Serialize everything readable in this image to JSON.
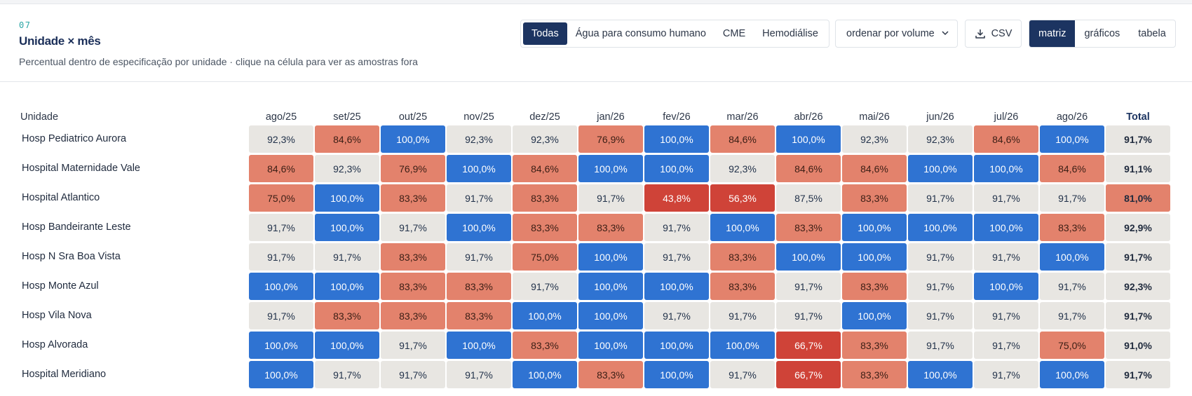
{
  "header": {
    "section_number": "07",
    "title": "Unidade × mês",
    "subtitle": "Percentual dentro de especificação por unidade · clique na célula para ver as amostras fora"
  },
  "filters": {
    "options": [
      "Todas",
      "Água para consumo humano",
      "CME",
      "Hemodiálise"
    ],
    "selected": "Todas"
  },
  "sort_select": {
    "value": "ordenar por volume",
    "icon": "chevron-down-icon"
  },
  "csv_button": {
    "label": "CSV",
    "icon": "download-icon"
  },
  "view_toggle": {
    "options": [
      "matriz",
      "gráficos",
      "tabela"
    ],
    "selected": "matriz"
  },
  "matrix": {
    "unit_header": "Unidade",
    "months": [
      "ago/25",
      "set/25",
      "out/25",
      "nov/25",
      "dez/25",
      "jan/26",
      "fev/26",
      "mar/26",
      "abr/26",
      "mai/26",
      "jun/26",
      "jul/26",
      "ago/26"
    ],
    "total_header": "Total",
    "colors": {
      "neutral": "#e8e6e2",
      "good": "#2f73d2",
      "warn": "#e3826c",
      "bad": "#cf4338",
      "accent": "#1c3461"
    },
    "rows": [
      {
        "unit": "Hosp Pediatrico Aurora",
        "values": [
          "92,3%",
          "84,6%",
          "100,0%",
          "92,3%",
          "92,3%",
          "76,9%",
          "100,0%",
          "84,6%",
          "100,0%",
          "92,3%",
          "92,3%",
          "84,6%",
          "100,0%"
        ],
        "total": "91,7%"
      },
      {
        "unit": "Hospital Maternidade Vale",
        "values": [
          "84,6%",
          "92,3%",
          "76,9%",
          "100,0%",
          "84,6%",
          "100,0%",
          "100,0%",
          "92,3%",
          "84,6%",
          "84,6%",
          "100,0%",
          "100,0%",
          "84,6%"
        ],
        "total": "91,1%"
      },
      {
        "unit": "Hospital Atlantico",
        "values": [
          "75,0%",
          "100,0%",
          "83,3%",
          "91,7%",
          "83,3%",
          "91,7%",
          "43,8%",
          "56,3%",
          "87,5%",
          "83,3%",
          "91,7%",
          "91,7%",
          "91,7%"
        ],
        "total": "81,0%"
      },
      {
        "unit": "Hosp Bandeirante Leste",
        "values": [
          "91,7%",
          "100,0%",
          "91,7%",
          "100,0%",
          "83,3%",
          "83,3%",
          "91,7%",
          "100,0%",
          "83,3%",
          "100,0%",
          "100,0%",
          "100,0%",
          "83,3%"
        ],
        "total": "92,9%"
      },
      {
        "unit": "Hosp N Sra Boa Vista",
        "values": [
          "91,7%",
          "91,7%",
          "83,3%",
          "91,7%",
          "75,0%",
          "100,0%",
          "91,7%",
          "83,3%",
          "100,0%",
          "100,0%",
          "91,7%",
          "91,7%",
          "100,0%"
        ],
        "total": "91,7%"
      },
      {
        "unit": "Hosp Monte Azul",
        "values": [
          "100,0%",
          "100,0%",
          "83,3%",
          "83,3%",
          "91,7%",
          "100,0%",
          "100,0%",
          "83,3%",
          "91,7%",
          "83,3%",
          "91,7%",
          "100,0%",
          "91,7%"
        ],
        "total": "92,3%"
      },
      {
        "unit": "Hosp Vila Nova",
        "values": [
          "91,7%",
          "83,3%",
          "83,3%",
          "83,3%",
          "100,0%",
          "100,0%",
          "91,7%",
          "91,7%",
          "91,7%",
          "100,0%",
          "91,7%",
          "91,7%",
          "91,7%"
        ],
        "total": "91,7%"
      },
      {
        "unit": "Hosp Alvorada",
        "values": [
          "100,0%",
          "100,0%",
          "91,7%",
          "100,0%",
          "83,3%",
          "100,0%",
          "100,0%",
          "100,0%",
          "66,7%",
          "83,3%",
          "91,7%",
          "91,7%",
          "75,0%"
        ],
        "total": "91,0%"
      },
      {
        "unit": "Hospital Meridiano",
        "values": [
          "100,0%",
          "91,7%",
          "91,7%",
          "91,7%",
          "100,0%",
          "83,3%",
          "100,0%",
          "91,7%",
          "66,7%",
          "83,3%",
          "100,0%",
          "91,7%",
          "100,0%"
        ],
        "total": "91,7%"
      }
    ]
  }
}
